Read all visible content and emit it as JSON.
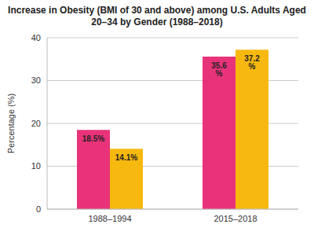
{
  "chart_data": {
    "type": "bar",
    "title": "Increase in Obesity (BMI of 30 and above) among U.S. Adults Aged 20–34 by Gender (1988–2018)",
    "y_label": "Percentage (%)",
    "categories": [
      "1988–1994",
      "2015–2018"
    ],
    "series": [
      {
        "color": "#e8337a",
        "values": [
          18.5,
          35.6
        ],
        "value_labels": [
          "18.5%",
          "35.6 %"
        ]
      },
      {
        "color": "#f7b80f",
        "values": [
          14.1,
          37.2
        ],
        "value_labels": [
          "14.1%",
          "37.2 %"
        ]
      }
    ],
    "ylim": [
      0,
      40
    ],
    "yticks": [
      0,
      10,
      20,
      30,
      40
    ],
    "grid": true,
    "data_labels": true
  }
}
